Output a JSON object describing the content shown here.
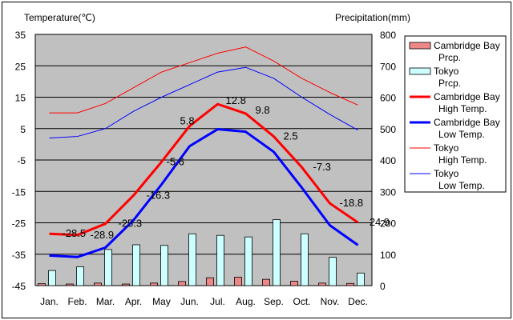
{
  "chart_data": {
    "type": "bar",
    "categories": [
      "Jan.",
      "Feb.",
      "Mar.",
      "Apr.",
      "May",
      "Jun.",
      "Jul.",
      "Aug.",
      "Sep.",
      "Oct.",
      "Nov.",
      "Dec."
    ],
    "left_axis_label": "Temperature(℃)",
    "right_axis_label": "Precipitation(mm)",
    "temp_ylim": [
      -45,
      35
    ],
    "temp_ticks": [
      35,
      25,
      15,
      5,
      -5,
      -15,
      -25,
      -35,
      -45
    ],
    "prcp_ylim": [
      0,
      800
    ],
    "prcp_ticks": [
      800,
      700,
      600,
      500,
      400,
      300,
      200,
      100,
      0
    ],
    "grid": true,
    "legend_position": "right",
    "series": [
      {
        "name": "Cambridge Bay\nPrcp.",
        "kind": "bar",
        "axis": "right",
        "color": "#ee8888",
        "values": [
          6,
          5,
          8,
          5,
          8,
          13,
          25,
          27,
          20,
          14,
          8,
          7
        ]
      },
      {
        "name": "Tokyo\nPrcp.",
        "kind": "bar",
        "axis": "right",
        "color": "#ccffff",
        "values": [
          48,
          60,
          115,
          130,
          128,
          165,
          160,
          155,
          210,
          165,
          90,
          40
        ]
      },
      {
        "name": "Cambridge Bay\nHigh Temp.",
        "kind": "line",
        "axis": "left",
        "color": "#ff0000",
        "width": 3,
        "values": [
          -28.5,
          -28.9,
          -25.3,
          -16.3,
          -5.6,
          5.8,
          12.8,
          9.8,
          2.5,
          -7.3,
          -18.8,
          -24.9
        ],
        "labels": [
          "-28.5",
          "-28.9",
          "-25.3",
          "-16.3",
          "-5.6",
          "5.8",
          "12.8",
          "9.8",
          "2.5",
          "-7.3",
          "-18.8",
          "-24.9"
        ]
      },
      {
        "name": "Cambridge Bay\nLow Temp.",
        "kind": "line",
        "axis": "left",
        "color": "#0000ff",
        "width": 3,
        "values": [
          -35.4,
          -35.9,
          -32.9,
          -24.2,
          -12.8,
          -0.6,
          4.8,
          4.0,
          -2.4,
          -13.8,
          -25.8,
          -32.1
        ]
      },
      {
        "name": "Tokyo\nHigh Temp.",
        "kind": "line",
        "axis": "left",
        "color": "#ff0000",
        "width": 1,
        "values": [
          10.0,
          10.0,
          13.0,
          18.0,
          23.0,
          26.0,
          29.0,
          31.0,
          26.5,
          21.0,
          16.5,
          12.5
        ]
      },
      {
        "name": "Tokyo\nLow Temp.",
        "kind": "line",
        "axis": "left",
        "color": "#0000ff",
        "width": 1,
        "values": [
          2.0,
          2.5,
          5.0,
          10.5,
          15.0,
          19.0,
          23.0,
          24.5,
          21.0,
          15.0,
          9.5,
          4.5
        ]
      }
    ]
  }
}
